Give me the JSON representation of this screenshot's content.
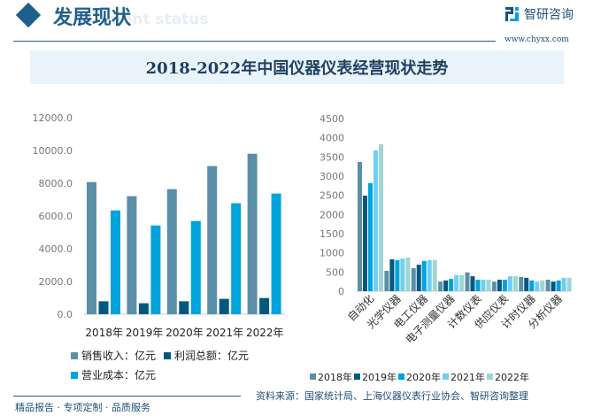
{
  "header": {
    "section_title": "发展现状",
    "section_ghost": "ment status",
    "logo_text": "智研咨询",
    "url": "www.chyxx.com"
  },
  "banner": {
    "title": "2018-2022年中国仪器仪表经营现状走势"
  },
  "footer": {
    "left": "精品报告 · 专项定制 · 品质服务",
    "source": "资料来源：国家统计局、上海仪器仪表行业协会、智研咨询整理"
  },
  "colors": {
    "brand": "#1f5f8b",
    "sales": "#5b8fa8",
    "profit": "#04587e",
    "cost": "#00a3dc",
    "y2018": "#5b8fa8",
    "y2019": "#04587e",
    "y2020": "#00a3dc",
    "y2021": "#6fcff5",
    "y2022": "#9dd6d2"
  },
  "chart_data": [
    {
      "type": "bar",
      "categories": [
        "2018年",
        "2019年",
        "2020年",
        "2021年",
        "2022年"
      ],
      "ylim": [
        0,
        12000
      ],
      "yticks": [
        "0.0",
        "2000.0",
        "4000.0",
        "6000.0",
        "8000.0",
        "10000.0",
        "12000.0"
      ],
      "legend_placement": "bottom",
      "grid": false,
      "series": [
        {
          "name": "销售收入：亿元",
          "values": [
            8070,
            7210,
            7640,
            9050,
            9800
          ]
        },
        {
          "name": "利润总额：亿元",
          "values": [
            790,
            670,
            790,
            940,
            990
          ]
        },
        {
          "name": "营业成本：亿元",
          "values": [
            6340,
            5420,
            5690,
            6780,
            7370
          ]
        }
      ]
    },
    {
      "type": "bar",
      "categories": [
        "自动化",
        "光学仪器",
        "电工仪器",
        "电子测量仪器",
        "计数仪表",
        "供应仪表",
        "计时仪器",
        "分析仪器"
      ],
      "ylim": [
        0,
        4500
      ],
      "yticks": [
        "0",
        "500",
        "1000",
        "1500",
        "2000",
        "2500",
        "3000",
        "3500",
        "4000",
        "4500"
      ],
      "legend_placement": "bottom",
      "grid": false,
      "series": [
        {
          "name": "2018年",
          "values": [
            3370,
            530,
            600,
            250,
            490,
            250,
            370,
            300
          ]
        },
        {
          "name": "2019年",
          "values": [
            2490,
            830,
            690,
            280,
            390,
            300,
            350,
            250
          ]
        },
        {
          "name": "2020年",
          "values": [
            2820,
            810,
            790,
            320,
            300,
            300,
            280,
            280
          ]
        },
        {
          "name": "2021年",
          "values": [
            3670,
            850,
            810,
            420,
            300,
            390,
            250,
            350
          ]
        },
        {
          "name": "2022年",
          "values": [
            3830,
            880,
            810,
            420,
            300,
            390,
            280,
            350
          ]
        }
      ]
    }
  ]
}
